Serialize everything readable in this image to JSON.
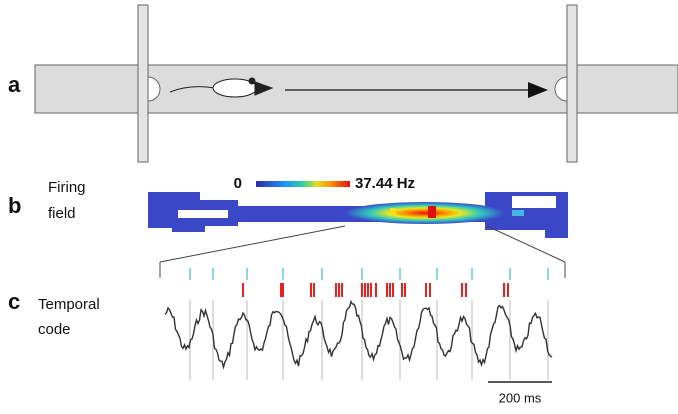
{
  "panel_a": {
    "label": "a"
  },
  "panel_b": {
    "label": "b",
    "title_lines": [
      "Firing",
      "field"
    ],
    "colorbar_min": "0",
    "colorbar_max": "37.44 Hz"
  },
  "panel_c": {
    "label": "c",
    "title_lines": [
      "Temporal",
      "code"
    ],
    "scale_bar": "200 ms"
  }
}
